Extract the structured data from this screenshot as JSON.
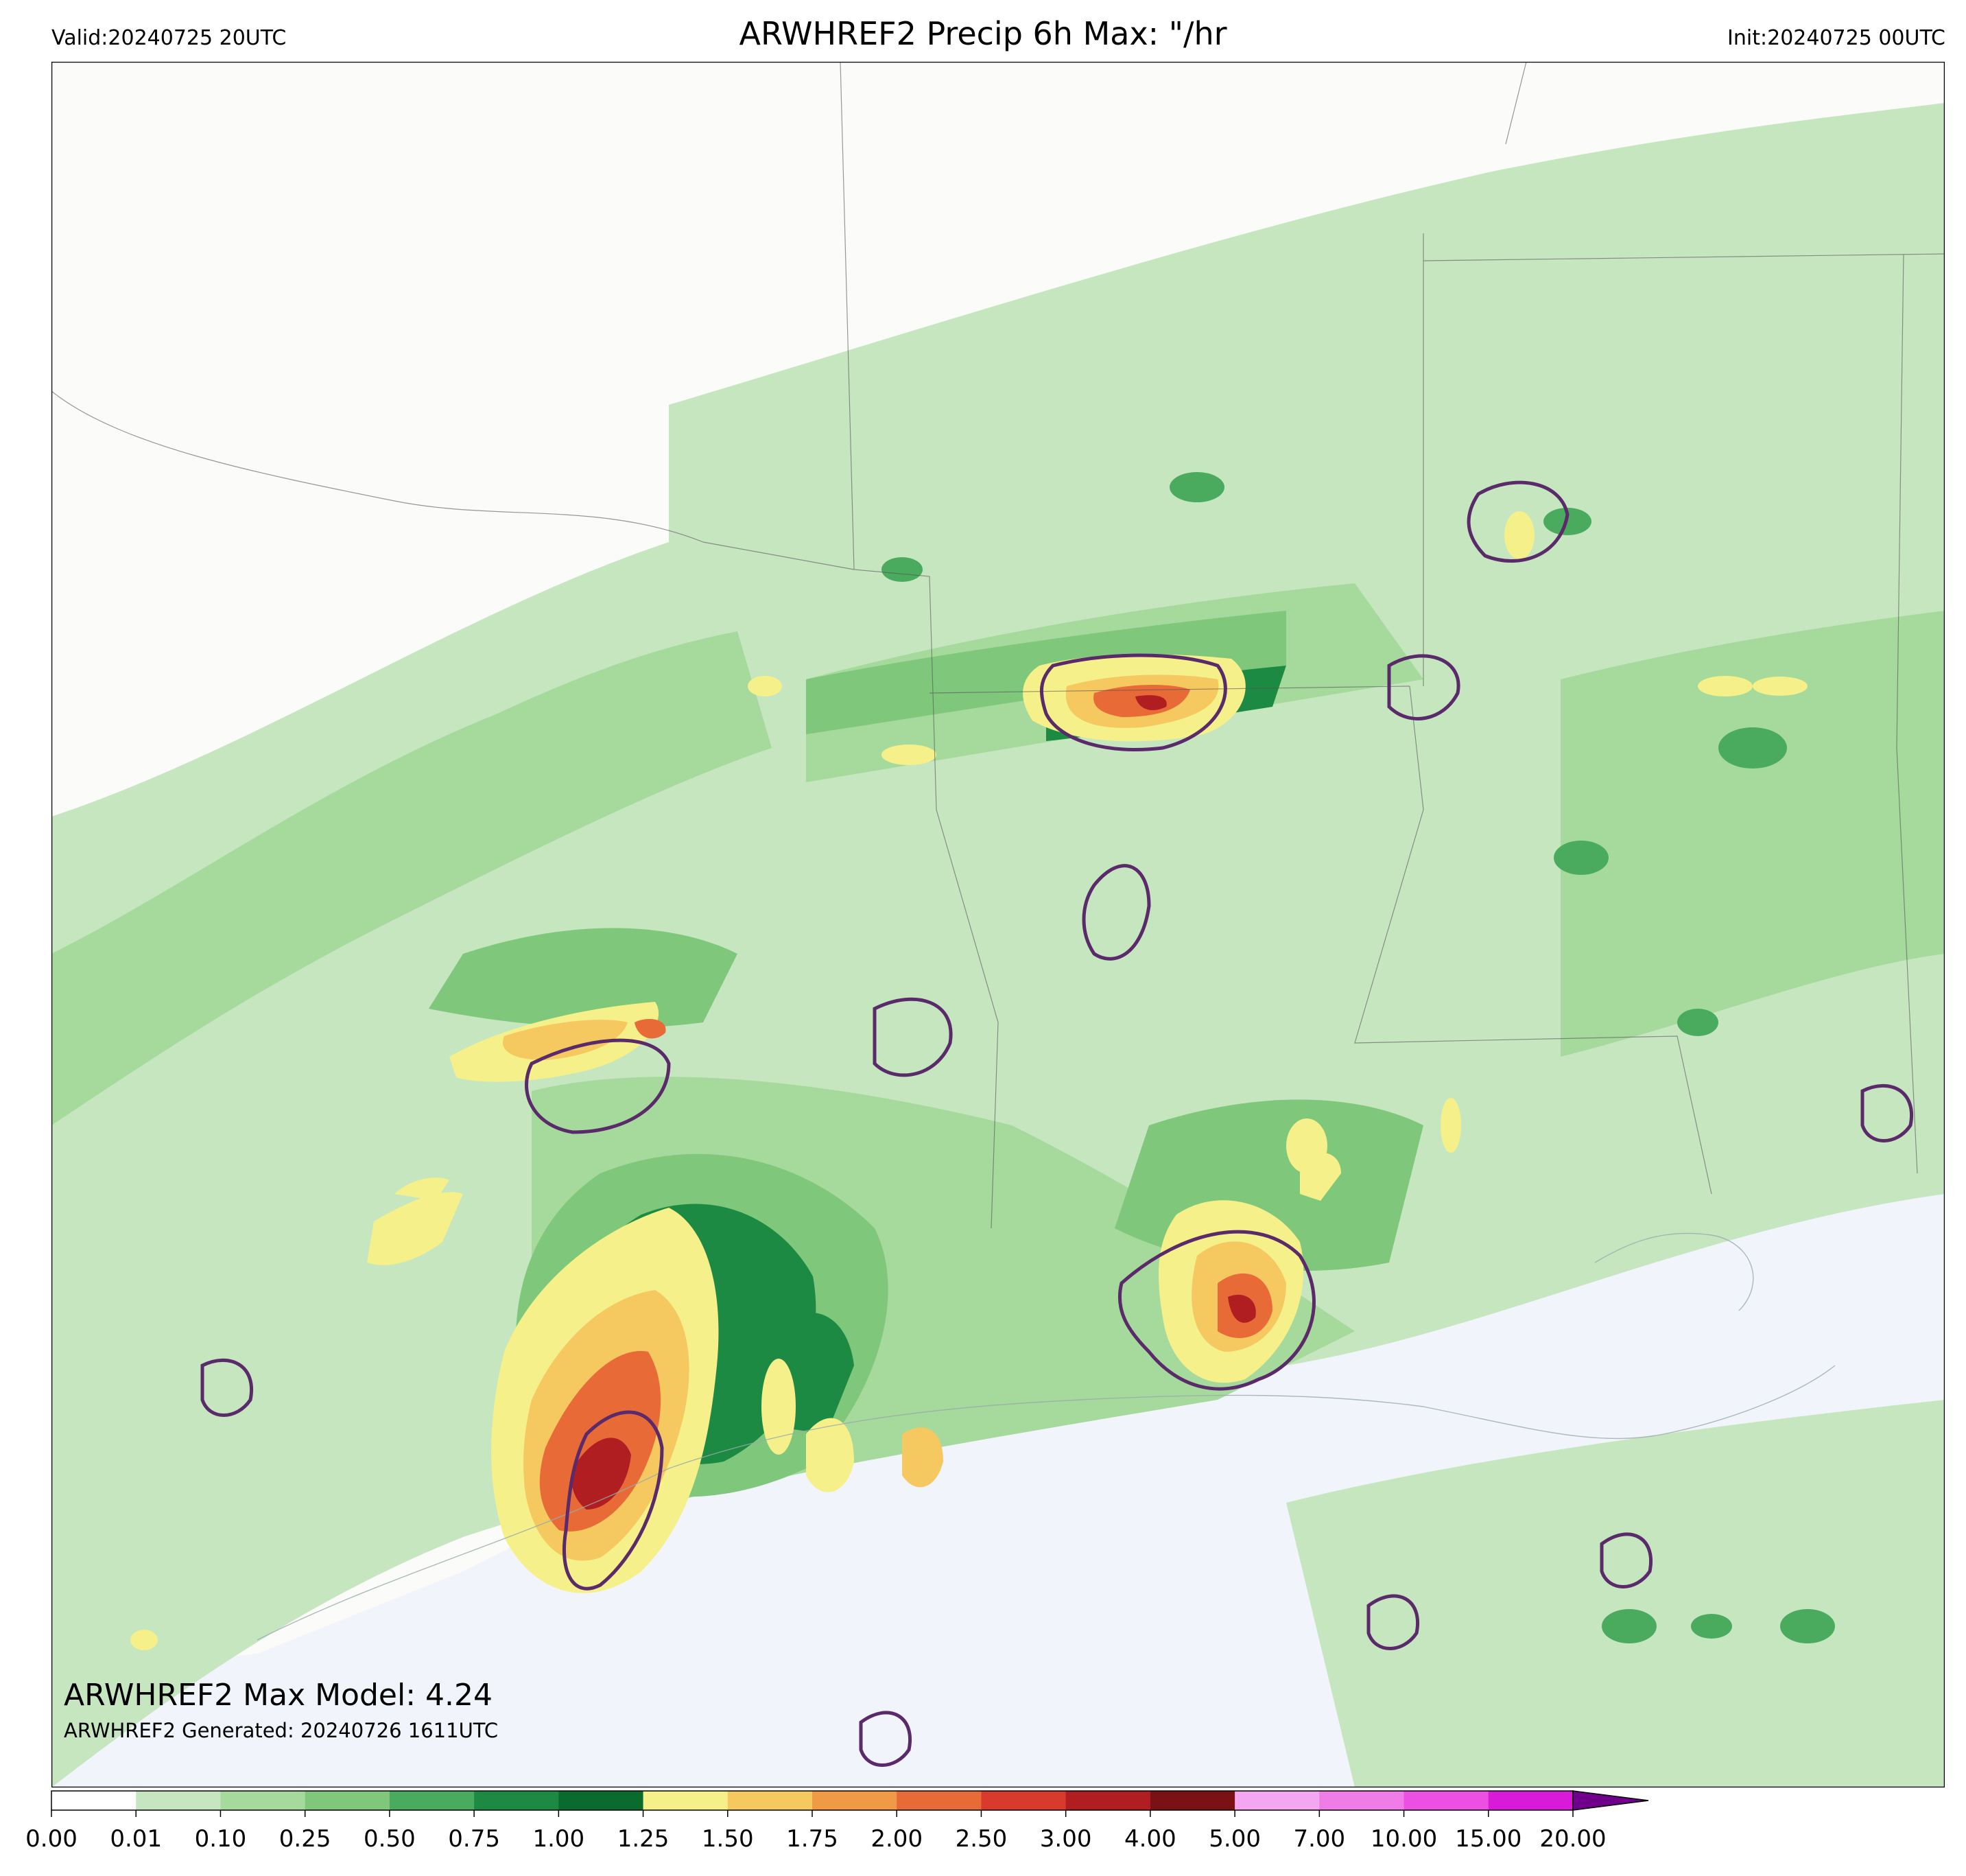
{
  "header": {
    "valid": "Valid:20240725 20UTC",
    "title": "ARWHREF2 Precip 6h Max: \"/hr",
    "init": "Init:20240725 00UTC"
  },
  "annotations": {
    "max_model": "ARWHREF2 Max Model: 4.24",
    "generated": "ARWHREF2 Generated: 20240726 1611UTC"
  },
  "colorbar": {
    "labels": [
      "0.00",
      "0.01",
      "0.10",
      "0.25",
      "0.50",
      "0.75",
      "1.00",
      "1.25",
      "1.50",
      "1.75",
      "2.00",
      "2.50",
      "3.00",
      "4.00",
      "5.00",
      "7.00",
      "10.00",
      "15.00",
      "20.00"
    ],
    "colors": [
      "#ffffff",
      "#c6e6c0",
      "#a6da9c",
      "#7fc77a",
      "#4aab5e",
      "#1d8a43",
      "#0b6b2f",
      "#f5f08a",
      "#f6c860",
      "#f19a45",
      "#e86a37",
      "#d83a2c",
      "#b01e22",
      "#7a1215",
      "#f5a6f0",
      "#f07ce8",
      "#ee4fe3",
      "#d91ad9",
      "#a600c8",
      "#6e008a"
    ]
  },
  "map": {
    "land_color": "#fbfbf9",
    "water_color": "#f1f4fa",
    "contour_color": "#5a2a6a",
    "precip_colors": {
      "very_light": "#c6e6c0",
      "light": "#a6da9c",
      "mid": "#7fc77a",
      "moderate": "#4aab5e",
      "heavy": "#1d8a43",
      "very_heavy": "#0b6b2f",
      "yellow": "#f5f08a",
      "gold": "#f6c860",
      "orange": "#f19a45",
      "red_orange": "#e86a37",
      "red": "#d83a2c",
      "dark_red": "#b01e22"
    }
  }
}
